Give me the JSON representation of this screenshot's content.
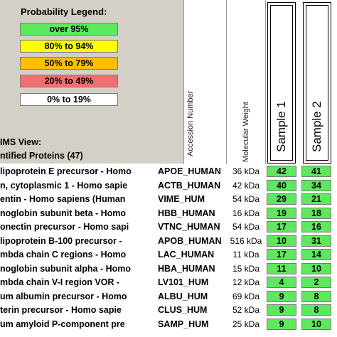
{
  "colors": {
    "panel_bg": "#d4d0c8",
    "prob_over_95": "#5ee85e",
    "prob_80_94": "#ffff00",
    "prob_50_79": "#ffbf00",
    "prob_20_49": "#f07070",
    "prob_0_19": "#ffffff"
  },
  "legend": {
    "title": "Probability Legend:",
    "items": [
      {
        "label": "over 95%",
        "color": "#5ee85e"
      },
      {
        "label": "80% to 94%",
        "color": "#ffff00"
      },
      {
        "label": "50% to 79%",
        "color": "#ffbf00"
      },
      {
        "label": "20% to 49%",
        "color": "#f07070"
      },
      {
        "label": "0% to 19%",
        "color": "#ffffff"
      }
    ]
  },
  "view": {
    "mode": "IMS View:",
    "list_title": "ntified Proteins (47)"
  },
  "columns": {
    "accession": "Accession Number",
    "mw": "Molecular Weight",
    "sample1": "Sample 1",
    "sample2": "Sample 2"
  },
  "rows": [
    {
      "name": "lipoprotein E precursor - Homo",
      "acc": "APOE_HUMAN",
      "mw": "36 kDa",
      "s1": "42",
      "s2": "41"
    },
    {
      "name": "n, cytoplasmic 1 - Homo sapie",
      "acc": "ACTB_HUMAN",
      "mw": "42 kDa",
      "s1": "40",
      "s2": "34"
    },
    {
      "name": "entin - Homo sapiens (Human",
      "acc": "VIME_HUM",
      "mw": "54 kDa",
      "s1": "29",
      "s2": "21"
    },
    {
      "name": "noglobin subunit beta - Homo",
      "acc": "HBB_HUMAN",
      "mw": "16 kDa",
      "s1": "19",
      "s2": "18"
    },
    {
      "name": "onectin precursor - Homo sapi",
      "acc": "VTNC_HUMAN",
      "mw": "54 kDa",
      "s1": "17",
      "s2": "16"
    },
    {
      "name": "lipoprotein B-100 precursor -",
      "acc": "APOB_HUMAN",
      "mw": "516 kDa",
      "s1": "10",
      "s2": "31"
    },
    {
      "name": "mbda chain C regions - Homo",
      "acc": "LAC_HUMAN",
      "mw": "11 kDa",
      "s1": "17",
      "s2": "14"
    },
    {
      "name": "noglobin subunit alpha - Homo",
      "acc": "HBA_HUMAN",
      "mw": "15 kDa",
      "s1": "11",
      "s2": "10"
    },
    {
      "name": "mbda chain V-I region VOR -",
      "acc": "LV101_HUM",
      "mw": "12 kDa",
      "s1": "4",
      "s2": "2"
    },
    {
      "name": "um albumin precursor - Homo",
      "acc": "ALBU_HUM",
      "mw": "69 kDa",
      "s1": "9",
      "s2": "8"
    },
    {
      "name": "terin precursor - Homo sapie",
      "acc": "CLUS_HUM",
      "mw": "52 kDa",
      "s1": "9",
      "s2": "8"
    },
    {
      "name": "um amyloid P-component pre",
      "acc": "SAMP_HUM",
      "mw": "25 kDa",
      "s1": "9",
      "s2": "10"
    }
  ]
}
